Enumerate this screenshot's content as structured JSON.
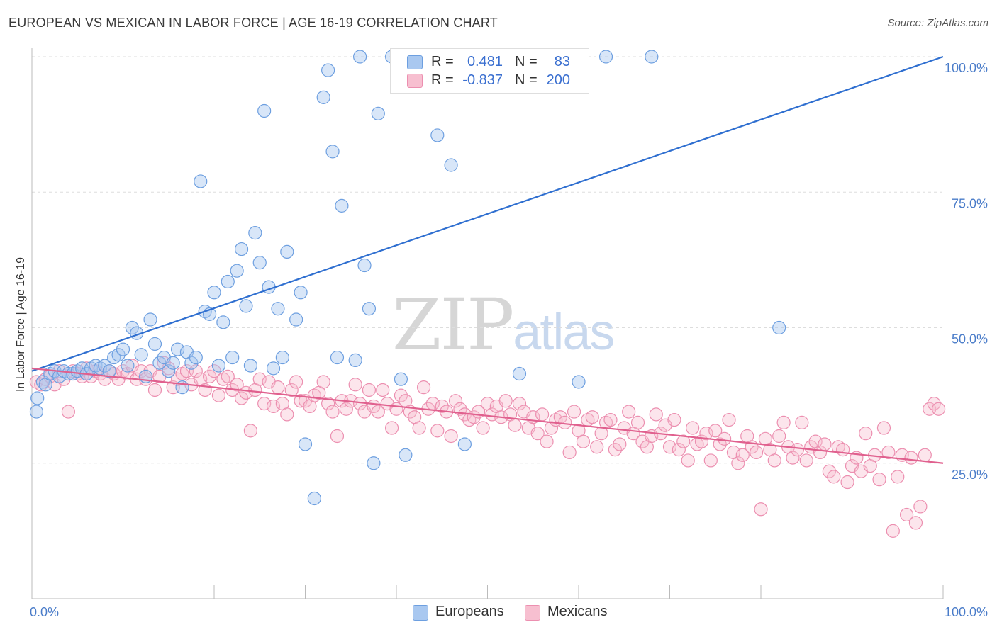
{
  "title": "EUROPEAN VS MEXICAN IN LABOR FORCE | AGE 16-19 CORRELATION CHART",
  "source": "Source: ZipAtlas.com",
  "watermark": {
    "part1": "ZIP",
    "part2": "atlas"
  },
  "legend": {
    "rows": [
      {
        "r_label": "R =",
        "r_value": "0.481",
        "n_label": "N =",
        "n_value": "83",
        "color": "#a9c8f0",
        "border": "#6d9fe0"
      },
      {
        "r_label": "R =",
        "r_value": "-0.837",
        "n_label": "N =",
        "n_value": "200",
        "color": "#f7bfd0",
        "border": "#ec8fb0"
      }
    ]
  },
  "bottom_legend": [
    {
      "label": "Europeans",
      "color": "#a9c8f0",
      "border": "#6d9fe0"
    },
    {
      "label": "Mexicans",
      "color": "#f7bfd0",
      "border": "#ec8fb0"
    }
  ],
  "chart_data": {
    "type": "scatter",
    "title": "EUROPEAN VS MEXICAN IN LABOR FORCE | AGE 16-19 CORRELATION CHART",
    "xlabel": "",
    "ylabel": "In Labor Force | Age 16-19",
    "xlim": [
      0,
      100
    ],
    "ylim": [
      0,
      100
    ],
    "x_tick_labels": [
      "0.0%",
      "100.0%"
    ],
    "y_tick_labels": [
      "25.0%",
      "50.0%",
      "75.0%",
      "100.0%"
    ],
    "y_ticks": [
      25,
      50,
      75,
      100
    ],
    "grid": true,
    "legend_position": "top-center",
    "colors": {
      "europeans": "#6d9fe0",
      "mexicans": "#ec8fb0",
      "europeans_line": "#2f6fd0",
      "mexicans_line": "#e0608e"
    },
    "series": [
      {
        "name": "Europeans",
        "trendline": {
          "x": [
            0,
            100
          ],
          "y": [
            42.0,
            100.0
          ]
        },
        "points": [
          [
            0.5,
            34.5
          ],
          [
            0.6,
            37.0
          ],
          [
            1.2,
            40.0
          ],
          [
            1.5,
            39.5
          ],
          [
            2.0,
            41.5
          ],
          [
            2.5,
            42.0
          ],
          [
            3.0,
            41.0
          ],
          [
            3.5,
            42.0
          ],
          [
            4.0,
            41.5
          ],
          [
            4.5,
            41.5
          ],
          [
            5.0,
            42.0
          ],
          [
            5.5,
            42.5
          ],
          [
            6.0,
            41.5
          ],
          [
            6.5,
            42.5
          ],
          [
            7.0,
            43.0
          ],
          [
            7.5,
            42.5
          ],
          [
            8.0,
            43.0
          ],
          [
            8.5,
            42.0
          ],
          [
            9.0,
            44.5
          ],
          [
            9.5,
            45.0
          ],
          [
            10.0,
            46.0
          ],
          [
            10.5,
            43.0
          ],
          [
            11.0,
            50.0
          ],
          [
            11.5,
            49.0
          ],
          [
            12.0,
            45.0
          ],
          [
            12.5,
            41.0
          ],
          [
            13.0,
            51.5
          ],
          [
            13.5,
            47.0
          ],
          [
            14.0,
            43.5
          ],
          [
            14.5,
            44.5
          ],
          [
            15.0,
            42.0
          ],
          [
            15.5,
            43.5
          ],
          [
            16.0,
            46.0
          ],
          [
            16.5,
            39.0
          ],
          [
            17.0,
            45.5
          ],
          [
            17.5,
            43.5
          ],
          [
            18.0,
            44.5
          ],
          [
            18.5,
            77.0
          ],
          [
            19.0,
            53.0
          ],
          [
            19.5,
            52.5
          ],
          [
            20.0,
            56.5
          ],
          [
            20.5,
            43.0
          ],
          [
            21.0,
            51.0
          ],
          [
            21.5,
            58.5
          ],
          [
            22.0,
            44.5
          ],
          [
            22.5,
            60.5
          ],
          [
            23.0,
            64.5
          ],
          [
            23.5,
            54.0
          ],
          [
            24.0,
            43.0
          ],
          [
            24.5,
            67.5
          ],
          [
            25.0,
            62.0
          ],
          [
            25.5,
            90.0
          ],
          [
            26.0,
            57.5
          ],
          [
            26.5,
            42.5
          ],
          [
            27.0,
            53.5
          ],
          [
            27.5,
            44.5
          ],
          [
            28.0,
            64.0
          ],
          [
            29.0,
            51.5
          ],
          [
            29.5,
            56.5
          ],
          [
            30.0,
            28.5
          ],
          [
            31.0,
            18.5
          ],
          [
            32.0,
            92.5
          ],
          [
            32.5,
            97.5
          ],
          [
            33.0,
            82.5
          ],
          [
            33.5,
            44.5
          ],
          [
            34.0,
            72.5
          ],
          [
            35.5,
            44.0
          ],
          [
            36.0,
            100.0
          ],
          [
            36.5,
            61.5
          ],
          [
            37.0,
            53.5
          ],
          [
            37.5,
            25.0
          ],
          [
            38.0,
            89.5
          ],
          [
            39.5,
            100.0
          ],
          [
            40.5,
            40.5
          ],
          [
            41.0,
            26.5
          ],
          [
            42.0,
            100.0
          ],
          [
            44.5,
            85.5
          ],
          [
            46.0,
            80.0
          ],
          [
            47.5,
            28.5
          ],
          [
            53.5,
            41.5
          ],
          [
            60.0,
            40.0
          ],
          [
            63.0,
            100.0
          ],
          [
            68.0,
            100.0
          ],
          [
            82.0,
            50.0
          ]
        ]
      },
      {
        "name": "Mexicans",
        "trendline": {
          "x": [
            0,
            100
          ],
          "y": [
            42.5,
            25.0
          ]
        },
        "points": [
          [
            0.5,
            40.0
          ],
          [
            1.0,
            39.5
          ],
          [
            1.5,
            40.5
          ],
          [
            2.0,
            41.0
          ],
          [
            2.5,
            39.5
          ],
          [
            3.0,
            42.0
          ],
          [
            3.5,
            40.5
          ],
          [
            4.0,
            34.5
          ],
          [
            4.5,
            42.0
          ],
          [
            5.0,
            41.5
          ],
          [
            5.5,
            41.0
          ],
          [
            6.0,
            42.5
          ],
          [
            6.5,
            41.0
          ],
          [
            7.0,
            42.0
          ],
          [
            7.5,
            41.5
          ],
          [
            8.0,
            40.5
          ],
          [
            8.5,
            42.0
          ],
          [
            9.0,
            41.5
          ],
          [
            9.5,
            40.5
          ],
          [
            10.0,
            42.0
          ],
          [
            10.5,
            41.5
          ],
          [
            11.0,
            43.0
          ],
          [
            11.5,
            40.5
          ],
          [
            12.0,
            42.0
          ],
          [
            12.5,
            40.5
          ],
          [
            13.0,
            42.0
          ],
          [
            13.5,
            38.5
          ],
          [
            14.0,
            41.0
          ],
          [
            14.5,
            43.5
          ],
          [
            15.0,
            42.5
          ],
          [
            15.5,
            39.0
          ],
          [
            16.0,
            40.5
          ],
          [
            16.5,
            41.5
          ],
          [
            17.0,
            42.0
          ],
          [
            17.5,
            39.5
          ],
          [
            18.0,
            42.0
          ],
          [
            18.5,
            40.5
          ],
          [
            19.0,
            38.5
          ],
          [
            19.5,
            41.0
          ],
          [
            20.0,
            42.0
          ],
          [
            20.5,
            37.5
          ],
          [
            21.0,
            40.5
          ],
          [
            21.5,
            41.0
          ],
          [
            22.0,
            38.5
          ],
          [
            22.5,
            39.5
          ],
          [
            23.0,
            37.0
          ],
          [
            23.5,
            38.0
          ],
          [
            24.0,
            31.0
          ],
          [
            24.5,
            38.5
          ],
          [
            25.0,
            40.5
          ],
          [
            25.5,
            36.0
          ],
          [
            26.0,
            40.0
          ],
          [
            26.5,
            35.5
          ],
          [
            27.0,
            39.0
          ],
          [
            27.5,
            36.0
          ],
          [
            28.0,
            34.0
          ],
          [
            28.5,
            38.5
          ],
          [
            29.0,
            40.0
          ],
          [
            29.5,
            36.5
          ],
          [
            30.0,
            36.5
          ],
          [
            30.5,
            35.5
          ],
          [
            31.0,
            37.5
          ],
          [
            31.5,
            38.0
          ],
          [
            32.0,
            40.0
          ],
          [
            32.5,
            36.0
          ],
          [
            33.0,
            34.5
          ],
          [
            33.5,
            30.0
          ],
          [
            34.0,
            36.5
          ],
          [
            34.5,
            35.0
          ],
          [
            35.0,
            36.5
          ],
          [
            35.5,
            39.5
          ],
          [
            36.0,
            36.0
          ],
          [
            36.5,
            34.5
          ],
          [
            37.0,
            38.5
          ],
          [
            37.5,
            35.5
          ],
          [
            38.0,
            34.5
          ],
          [
            38.5,
            38.5
          ],
          [
            39.0,
            36.0
          ],
          [
            39.5,
            31.5
          ],
          [
            40.0,
            35.0
          ],
          [
            40.5,
            37.5
          ],
          [
            41.0,
            36.5
          ],
          [
            41.5,
            34.5
          ],
          [
            42.0,
            33.5
          ],
          [
            42.5,
            31.5
          ],
          [
            43.0,
            39.0
          ],
          [
            43.5,
            35.0
          ],
          [
            44.0,
            36.0
          ],
          [
            44.5,
            31.0
          ],
          [
            45.0,
            35.5
          ],
          [
            45.5,
            34.5
          ],
          [
            46.0,
            30.0
          ],
          [
            46.5,
            36.5
          ],
          [
            47.0,
            35.0
          ],
          [
            47.5,
            34.0
          ],
          [
            48.0,
            33.0
          ],
          [
            48.5,
            33.5
          ],
          [
            49.0,
            34.5
          ],
          [
            49.5,
            31.5
          ],
          [
            50.0,
            36.0
          ],
          [
            50.5,
            34.0
          ],
          [
            51.0,
            35.5
          ],
          [
            51.5,
            33.5
          ],
          [
            52.0,
            36.5
          ],
          [
            52.5,
            34.0
          ],
          [
            53.0,
            32.0
          ],
          [
            53.5,
            36.0
          ],
          [
            54.0,
            34.5
          ],
          [
            54.5,
            31.5
          ],
          [
            55.0,
            33.5
          ],
          [
            55.5,
            30.5
          ],
          [
            56.0,
            34.0
          ],
          [
            56.5,
            29.0
          ],
          [
            57.0,
            31.5
          ],
          [
            57.5,
            33.0
          ],
          [
            58.0,
            33.5
          ],
          [
            58.5,
            32.5
          ],
          [
            59.0,
            27.0
          ],
          [
            59.5,
            34.5
          ],
          [
            60.0,
            31.0
          ],
          [
            60.5,
            29.0
          ],
          [
            61.0,
            33.0
          ],
          [
            61.5,
            33.5
          ],
          [
            62.0,
            28.0
          ],
          [
            62.5,
            30.5
          ],
          [
            63.0,
            32.5
          ],
          [
            63.5,
            33.0
          ],
          [
            64.0,
            27.5
          ],
          [
            64.5,
            28.5
          ],
          [
            65.0,
            31.5
          ],
          [
            65.5,
            34.5
          ],
          [
            66.0,
            30.5
          ],
          [
            66.5,
            32.5
          ],
          [
            67.0,
            29.0
          ],
          [
            67.5,
            28.0
          ],
          [
            68.0,
            30.0
          ],
          [
            68.5,
            34.0
          ],
          [
            69.0,
            30.5
          ],
          [
            69.5,
            32.0
          ],
          [
            70.0,
            28.0
          ],
          [
            70.5,
            33.0
          ],
          [
            71.0,
            27.5
          ],
          [
            71.5,
            29.0
          ],
          [
            72.0,
            25.5
          ],
          [
            72.5,
            31.5
          ],
          [
            73.0,
            28.5
          ],
          [
            73.5,
            29.0
          ],
          [
            74.0,
            30.5
          ],
          [
            74.5,
            25.5
          ],
          [
            75.0,
            31.0
          ],
          [
            75.5,
            28.5
          ],
          [
            76.0,
            29.5
          ],
          [
            76.5,
            33.0
          ],
          [
            77.0,
            27.0
          ],
          [
            77.5,
            25.0
          ],
          [
            78.0,
            26.5
          ],
          [
            78.5,
            30.0
          ],
          [
            79.0,
            28.0
          ],
          [
            79.5,
            27.0
          ],
          [
            80.0,
            16.5
          ],
          [
            80.5,
            29.5
          ],
          [
            81.0,
            27.5
          ],
          [
            81.5,
            25.5
          ],
          [
            82.0,
            30.0
          ],
          [
            82.5,
            32.5
          ],
          [
            83.0,
            28.0
          ],
          [
            83.5,
            26.0
          ],
          [
            84.0,
            27.5
          ],
          [
            84.5,
            32.5
          ],
          [
            85.0,
            25.5
          ],
          [
            85.5,
            28.0
          ],
          [
            86.0,
            29.0
          ],
          [
            86.5,
            27.0
          ],
          [
            87.0,
            28.5
          ],
          [
            87.5,
            23.5
          ],
          [
            88.0,
            22.5
          ],
          [
            88.5,
            28.0
          ],
          [
            89.0,
            27.5
          ],
          [
            89.5,
            21.5
          ],
          [
            90.0,
            24.5
          ],
          [
            90.5,
            26.0
          ],
          [
            91.0,
            23.5
          ],
          [
            91.5,
            30.5
          ],
          [
            92.0,
            24.5
          ],
          [
            92.5,
            26.5
          ],
          [
            93.0,
            22.0
          ],
          [
            93.5,
            31.5
          ],
          [
            94.0,
            27.0
          ],
          [
            94.5,
            12.5
          ],
          [
            95.0,
            22.5
          ],
          [
            95.5,
            26.5
          ],
          [
            96.0,
            15.5
          ],
          [
            96.5,
            26.0
          ],
          [
            97.0,
            14.0
          ],
          [
            97.5,
            17.0
          ],
          [
            98.0,
            26.5
          ],
          [
            98.5,
            35.0
          ],
          [
            99.0,
            36.0
          ],
          [
            99.5,
            35.0
          ]
        ]
      }
    ]
  }
}
